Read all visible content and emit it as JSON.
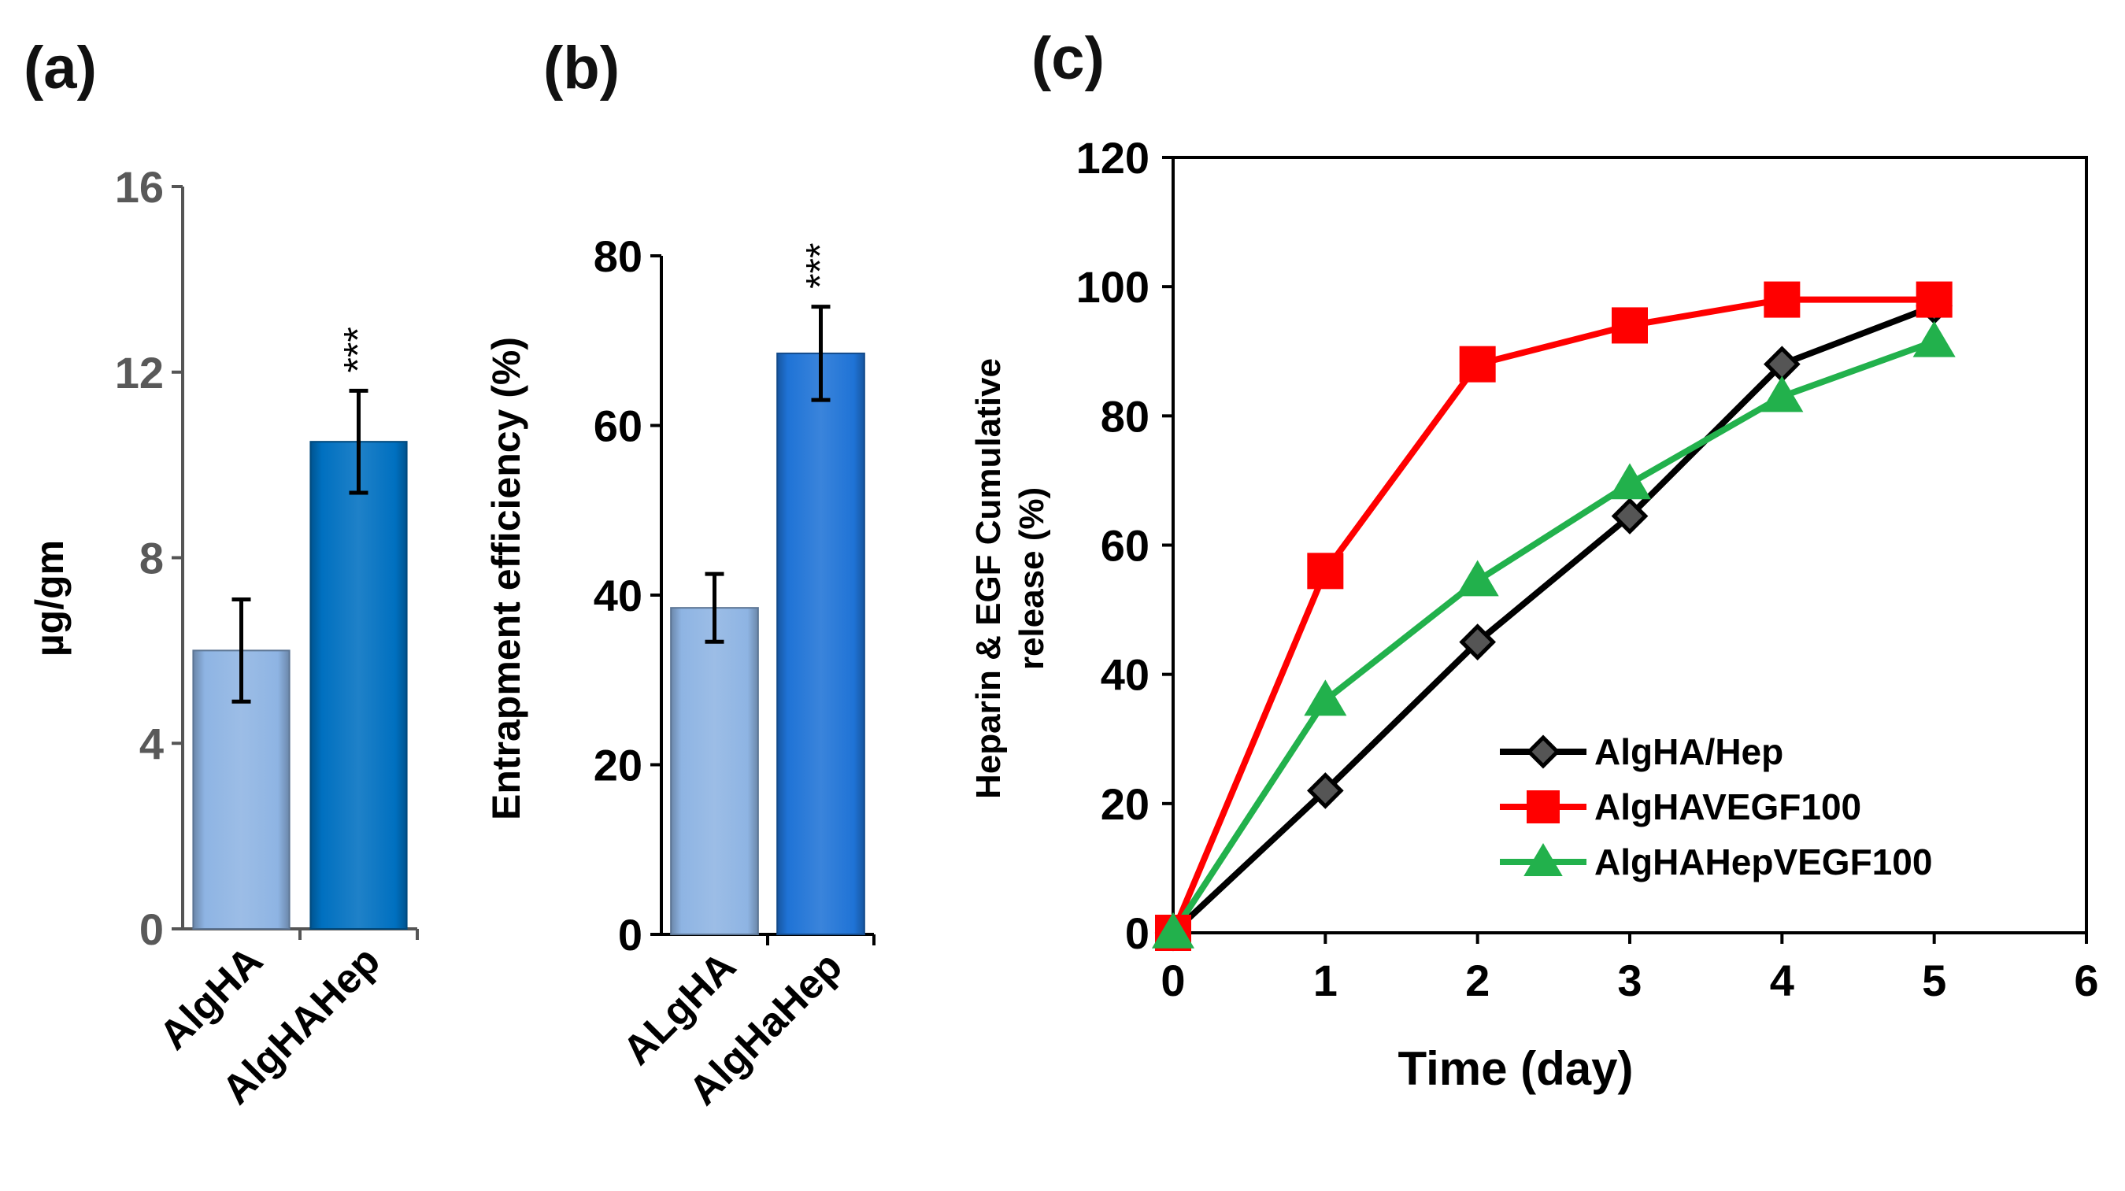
{
  "chart_data": [
    {
      "panel": "(a)",
      "type": "bar",
      "categories": [
        "AlgHA",
        "AlgHAHep"
      ],
      "values": [
        6.0,
        10.5
      ],
      "errors": [
        1.1,
        1.1
      ],
      "significance": [
        "",
        "***"
      ],
      "bar_colors": [
        "#8EB4E3",
        "#0070C0"
      ],
      "ylabel": "µg/gm",
      "xlabel": "",
      "ylim": [
        0,
        16
      ],
      "yticks": [
        "0",
        "4",
        "8",
        "12",
        "16"
      ]
    },
    {
      "panel": "(b)",
      "type": "bar",
      "categories": [
        "ALgHA",
        "AlgHaHep"
      ],
      "values": [
        38.5,
        68.5
      ],
      "errors": [
        4.0,
        5.5
      ],
      "significance": [
        "",
        "***"
      ],
      "bar_colors": [
        "#8EB4E3",
        "#1F73D6"
      ],
      "ylabel": "Entrapment efficiency (%)",
      "xlabel": "",
      "ylim": [
        0,
        80
      ],
      "yticks": [
        "0",
        "20",
        "40",
        "60",
        "80"
      ]
    },
    {
      "panel": "(c)",
      "type": "line",
      "xlabel": "Time (day)",
      "ylabel_line1": "Heparin & EGF Cumulative",
      "ylabel_line2": "release (%)",
      "xlim": [
        0,
        6
      ],
      "ylim": [
        0,
        120
      ],
      "xticks": [
        "0",
        "1",
        "2",
        "3",
        "4",
        "5",
        "6"
      ],
      "yticks": [
        "0",
        "20",
        "40",
        "60",
        "80",
        "100",
        "120"
      ],
      "x": [
        0,
        1,
        2,
        3,
        4,
        5
      ],
      "series": [
        {
          "name": "AlgHA/Hep",
          "values": [
            0,
            22,
            45,
            64.5,
            88,
            97
          ],
          "color": "#000000",
          "marker": "diamond"
        },
        {
          "name": "AlgHAVEGF100",
          "values": [
            0,
            56,
            88,
            94,
            98,
            98
          ],
          "color": "#FF0000",
          "marker": "square"
        },
        {
          "name": "AlgHAHepVEGF100",
          "values": [
            0,
            36,
            54.5,
            69.5,
            83,
            91.5
          ],
          "color": "#22B14C",
          "marker": "triangle"
        }
      ],
      "legend_position": "bottom-right"
    }
  ]
}
